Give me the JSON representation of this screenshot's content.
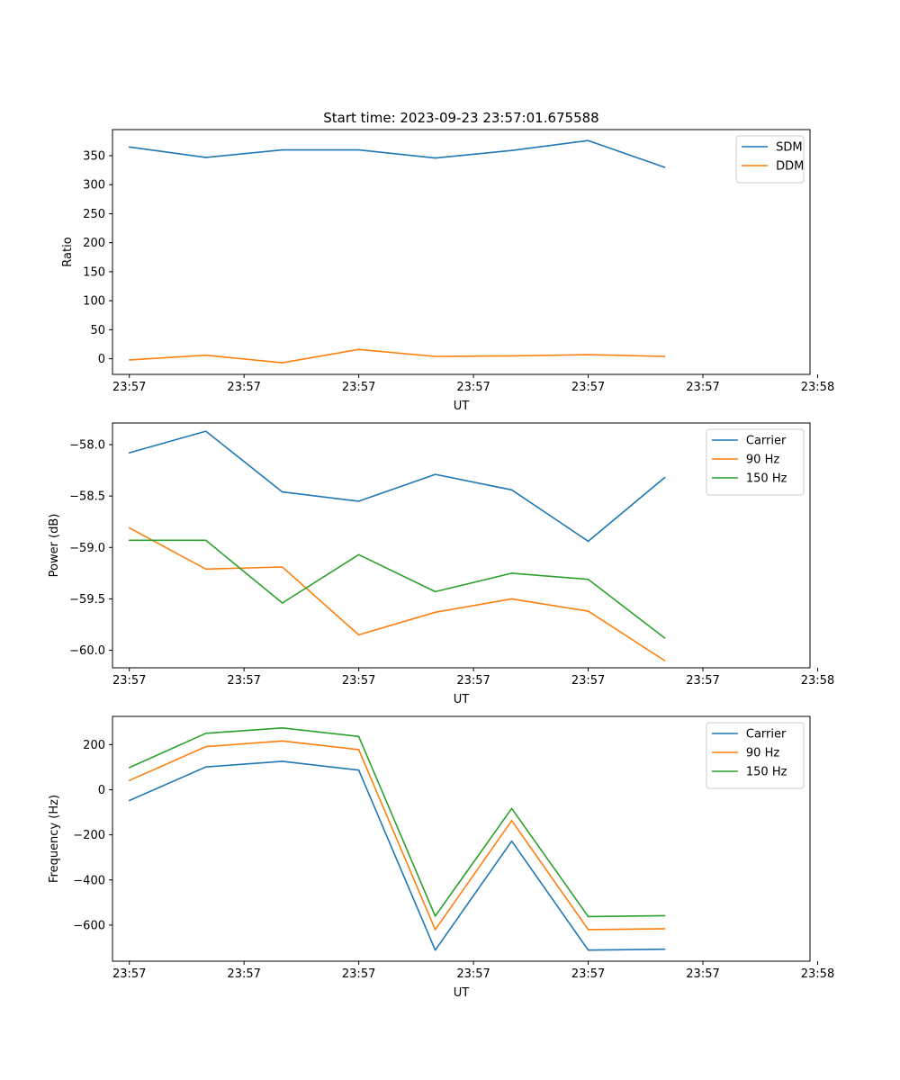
{
  "title": "Start time: 2023-09-23 23:57:01.675588",
  "colors": {
    "blue": "#1f77b4",
    "orange": "#ff7f0e",
    "green": "#2ca02c"
  },
  "chart_data": [
    {
      "type": "line",
      "title": "Start time: 2023-09-23 23:57:01.675588",
      "xlabel": "UT",
      "ylabel": "Ratio",
      "x": [
        1,
        2,
        3,
        4,
        5,
        6,
        7,
        8
      ],
      "xlim": [
        0.78,
        9.9
      ],
      "xticks": [
        1,
        2.5,
        4,
        5.5,
        7,
        8.5,
        10
      ],
      "xtick_labels": [
        "23:57",
        "23:57",
        "23:57",
        "23:57",
        "23:57",
        "23:57",
        "23:58"
      ],
      "ylim": [
        -27,
        395
      ],
      "yticks": [
        0,
        50,
        100,
        150,
        200,
        250,
        300,
        350
      ],
      "ytick_labels": [
        "0",
        "50",
        "100",
        "150",
        "200",
        "250",
        "300",
        "350"
      ],
      "legend": "top-right",
      "series": [
        {
          "name": "SDM",
          "color": "#1f77b4",
          "values": [
            365,
            347,
            360,
            360,
            346,
            359,
            376,
            330
          ]
        },
        {
          "name": "DDM",
          "color": "#ff7f0e",
          "values": [
            -2,
            6,
            -7,
            16,
            4,
            5,
            7,
            4
          ]
        }
      ]
    },
    {
      "type": "line",
      "xlabel": "UT",
      "ylabel": "Power (dB)",
      "x": [
        1,
        2,
        3,
        4,
        5,
        6,
        7,
        8
      ],
      "xlim": [
        0.78,
        9.9
      ],
      "xticks": [
        1,
        2.5,
        4,
        5.5,
        7,
        8.5,
        10
      ],
      "xtick_labels": [
        "23:57",
        "23:57",
        "23:57",
        "23:57",
        "23:57",
        "23:57",
        "23:58"
      ],
      "ylim": [
        -60.17,
        -57.79
      ],
      "yticks": [
        -58.0,
        -58.5,
        -59.0,
        -59.5,
        -60.0
      ],
      "ytick_labels": [
        "−58.0",
        "−58.5",
        "−59.0",
        "−59.5",
        "−60.0"
      ],
      "legend": "top-right",
      "series": [
        {
          "name": "Carrier",
          "color": "#1f77b4",
          "values": [
            -58.08,
            -57.87,
            -58.46,
            -58.55,
            -58.29,
            -58.44,
            -58.94,
            -58.32
          ]
        },
        {
          "name": "90 Hz",
          "color": "#ff7f0e",
          "values": [
            -58.81,
            -59.21,
            -59.19,
            -59.85,
            -59.63,
            -59.5,
            -59.62,
            -60.1
          ]
        },
        {
          "name": "150 Hz",
          "color": "#2ca02c",
          "values": [
            -58.93,
            -58.93,
            -59.54,
            -59.07,
            -59.43,
            -59.25,
            -59.31,
            -59.88
          ]
        }
      ]
    },
    {
      "type": "line",
      "xlabel": "UT",
      "ylabel": "Frequency (Hz)",
      "x": [
        1,
        2,
        3,
        4,
        5,
        6,
        7,
        8
      ],
      "xlim": [
        0.78,
        9.9
      ],
      "xticks": [
        1,
        2.5,
        4,
        5.5,
        7,
        8.5,
        10
      ],
      "xtick_labels": [
        "23:57",
        "23:57",
        "23:57",
        "23:57",
        "23:57",
        "23:57",
        "23:58"
      ],
      "ylim": [
        -760,
        325
      ],
      "yticks": [
        200,
        0,
        -200,
        -400,
        -600
      ],
      "ytick_labels": [
        "200",
        "0",
        "−200",
        "−400",
        "−600"
      ],
      "legend": "top-right",
      "series": [
        {
          "name": "Carrier",
          "color": "#1f77b4",
          "values": [
            -48,
            101,
            126,
            87,
            -711,
            -228,
            -711,
            -707
          ]
        },
        {
          "name": "90 Hz",
          "color": "#ff7f0e",
          "values": [
            41,
            191,
            216,
            178,
            -620,
            -137,
            -620,
            -616
          ]
        },
        {
          "name": "150 Hz",
          "color": "#2ca02c",
          "values": [
            98,
            250,
            274,
            236,
            -560,
            -83,
            -562,
            -558
          ]
        }
      ]
    }
  ]
}
